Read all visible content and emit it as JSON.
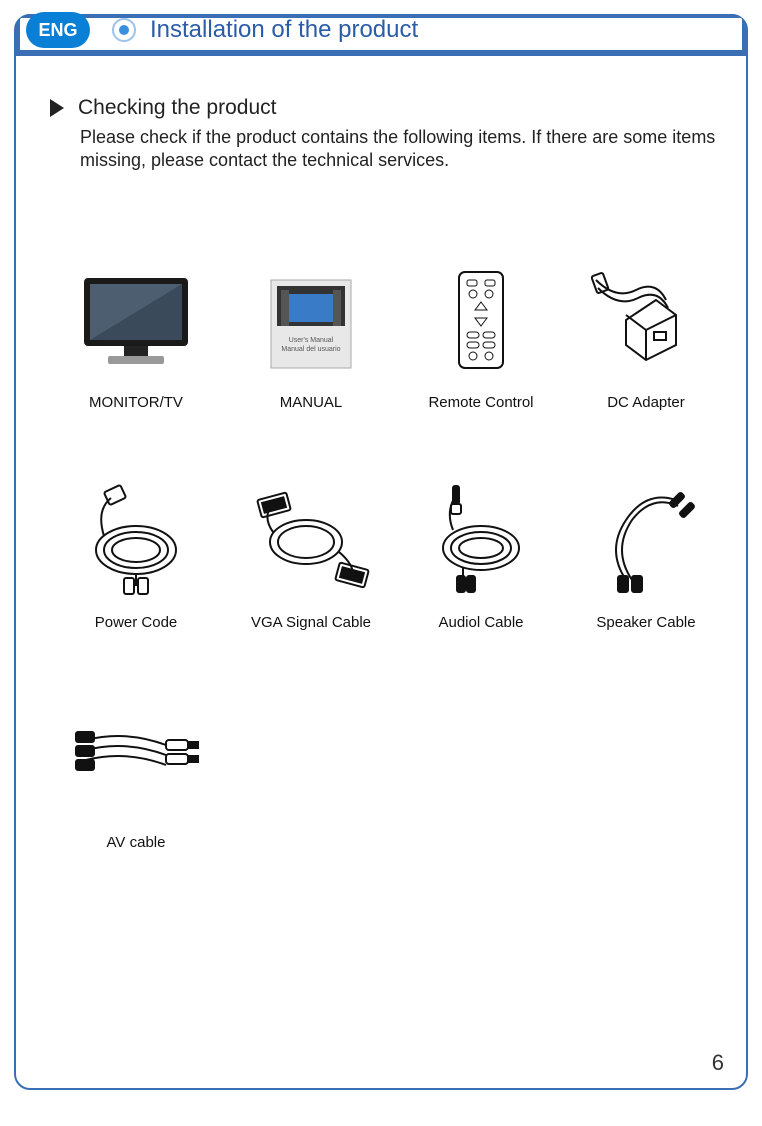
{
  "header": {
    "lang_badge": "ENG",
    "title": "Installation of the product",
    "title_color": "#2a5ca8",
    "header_bg": "#3a6fb5"
  },
  "section": {
    "heading": "Checking the product",
    "description": "Please check if the product contains the following items. If there are some items missing, please contact the technical services."
  },
  "items": [
    {
      "label": "MONITOR/TV",
      "icon": "monitor"
    },
    {
      "label": "MANUAL",
      "icon": "manual"
    },
    {
      "label": "Remote Control",
      "icon": "remote"
    },
    {
      "label": "DC Adapter",
      "icon": "adapter"
    },
    {
      "label": "Power Code",
      "icon": "powercord"
    },
    {
      "label": "VGA Signal Cable",
      "icon": "vga"
    },
    {
      "label": "Audiol Cable",
      "icon": "audio"
    },
    {
      "label": "Speaker Cable",
      "icon": "speaker"
    },
    {
      "label": "AV cable",
      "icon": "av"
    }
  ],
  "page_number": "6",
  "colors": {
    "frame_border": "#3a6fb5",
    "badge_bg": "#0a7fd6",
    "text": "#222222"
  }
}
